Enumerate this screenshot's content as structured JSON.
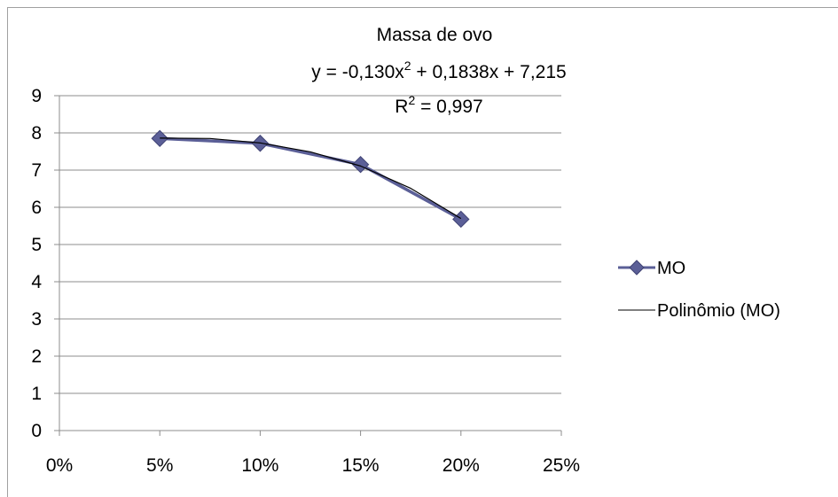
{
  "chart_data": {
    "type": "scatter",
    "title": "Massa de ovo",
    "equation_prefix": "y = -0,130x",
    "equation_suffix": " + 0,1838x + 7,215",
    "r2_prefix": "R",
    "r2_suffix": " = 0,997",
    "superscript": "2",
    "x_ticks": [
      "0%",
      "5%",
      "10%",
      "15%",
      "20%",
      "25%"
    ],
    "y_ticks": [
      "0",
      "1",
      "2",
      "3",
      "4",
      "5",
      "6",
      "7",
      "8",
      "9"
    ],
    "xlim": [
      0,
      25
    ],
    "ylim": [
      0,
      9
    ],
    "grid": true,
    "legend_position": "right",
    "series": [
      {
        "name": "MO",
        "color": "#5b5f97",
        "marker": "diamond",
        "x": [
          5,
          10,
          15,
          20
        ],
        "y": [
          7.85,
          7.72,
          7.15,
          5.68
        ]
      }
    ],
    "trendline": {
      "name": "Polinômio (MO)",
      "color": "#000000",
      "type": "polynomial",
      "x": [
        5,
        7.5,
        10,
        12.5,
        15,
        17.5,
        20
      ],
      "y": [
        7.86,
        7.85,
        7.73,
        7.49,
        7.11,
        6.51,
        5.7
      ]
    }
  }
}
